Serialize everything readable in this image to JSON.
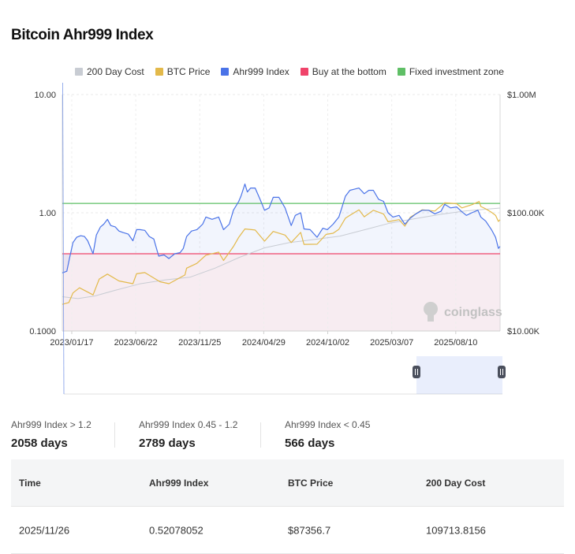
{
  "page_title": "Bitcoin Ahr999 Index",
  "legend": [
    {
      "label": "200 Day Cost",
      "color": "#c8ccd3"
    },
    {
      "label": "BTC Price",
      "color": "#e3b94a"
    },
    {
      "label": "Ahr999 Index",
      "color": "#4a73e8"
    },
    {
      "label": "Buy at the bottom",
      "color": "#f0436a"
    },
    {
      "label": "Fixed investment zone",
      "color": "#5fbf66"
    }
  ],
  "watermark": "coinglass",
  "chart_data": {
    "type": "line",
    "x_start": "2022-12-25",
    "x_end": "2025-11-26",
    "x_tick_labels": [
      "2023/01/17",
      "2023/06/22",
      "2023/11/25",
      "2024/04/29",
      "2024/10/02",
      "2025/03/07",
      "2025/08/10"
    ],
    "x_tick_dates": [
      "2023-01-17",
      "2023-06-22",
      "2023-11-25",
      "2024-04-29",
      "2024-10-02",
      "2025-03-07",
      "2025-08-10"
    ],
    "y_left": {
      "scale": "log",
      "ylim": [
        0.1,
        10
      ],
      "tick_labels": [
        "10.00",
        "1.00",
        "0.1000"
      ],
      "tick_values": [
        10,
        1,
        0.1
      ]
    },
    "y_right": {
      "scale": "log",
      "ylim": [
        10000,
        1000000
      ],
      "tick_labels": [
        "$1.00M",
        "$100.00K",
        "$10.00K"
      ],
      "tick_values": [
        1000000,
        100000,
        10000
      ]
    },
    "thresholds": [
      {
        "name": "Fixed investment zone",
        "value": 1.2,
        "color": "#5fbf66"
      },
      {
        "name": "Buy at the bottom",
        "value": 0.45,
        "color": "#f0436a"
      }
    ],
    "grid": true,
    "legend_position": "top",
    "series": [
      {
        "name": "Ahr999 Index",
        "axis": "left",
        "color": "#4a73e8",
        "points": [
          [
            "2022-12-25",
            0.31
          ],
          [
            "2023-01-05",
            0.32
          ],
          [
            "2023-01-12",
            0.42
          ],
          [
            "2023-01-20",
            0.56
          ],
          [
            "2023-01-29",
            0.62
          ],
          [
            "2023-02-08",
            0.64
          ],
          [
            "2023-02-17",
            0.63
          ],
          [
            "2023-02-25",
            0.58
          ],
          [
            "2023-03-10",
            0.45
          ],
          [
            "2023-03-18",
            0.65
          ],
          [
            "2023-03-28",
            0.76
          ],
          [
            "2023-04-05",
            0.8
          ],
          [
            "2023-04-14",
            0.88
          ],
          [
            "2023-04-22",
            0.78
          ],
          [
            "2023-05-03",
            0.76
          ],
          [
            "2023-05-12",
            0.7
          ],
          [
            "2023-05-22",
            0.68
          ],
          [
            "2023-06-04",
            0.66
          ],
          [
            "2023-06-15",
            0.58
          ],
          [
            "2023-06-24",
            0.72
          ],
          [
            "2023-07-02",
            0.72
          ],
          [
            "2023-07-14",
            0.71
          ],
          [
            "2023-07-25",
            0.63
          ],
          [
            "2023-08-05",
            0.6
          ],
          [
            "2023-08-17",
            0.43
          ],
          [
            "2023-08-30",
            0.44
          ],
          [
            "2023-09-11",
            0.41
          ],
          [
            "2023-09-25",
            0.45
          ],
          [
            "2023-10-08",
            0.46
          ],
          [
            "2023-10-16",
            0.5
          ],
          [
            "2023-10-24",
            0.63
          ],
          [
            "2023-11-05",
            0.7
          ],
          [
            "2023-11-18",
            0.72
          ],
          [
            "2023-12-02",
            0.8
          ],
          [
            "2023-12-10",
            0.92
          ],
          [
            "2023-12-25",
            0.88
          ],
          [
            "2024-01-10",
            0.92
          ],
          [
            "2024-01-22",
            0.72
          ],
          [
            "2024-02-05",
            0.8
          ],
          [
            "2024-02-15",
            1.05
          ],
          [
            "2024-02-28",
            1.25
          ],
          [
            "2024-03-05",
            1.4
          ],
          [
            "2024-03-14",
            1.75
          ],
          [
            "2024-03-20",
            1.5
          ],
          [
            "2024-03-28",
            1.62
          ],
          [
            "2024-04-08",
            1.62
          ],
          [
            "2024-04-20",
            1.3
          ],
          [
            "2024-05-01",
            1.05
          ],
          [
            "2024-05-12",
            1.1
          ],
          [
            "2024-05-22",
            1.35
          ],
          [
            "2024-06-05",
            1.35
          ],
          [
            "2024-06-20",
            1.1
          ],
          [
            "2024-07-05",
            0.78
          ],
          [
            "2024-07-15",
            0.95
          ],
          [
            "2024-07-28",
            1.0
          ],
          [
            "2024-08-05",
            0.73
          ],
          [
            "2024-08-20",
            0.72
          ],
          [
            "2024-09-06",
            0.62
          ],
          [
            "2024-09-20",
            0.74
          ],
          [
            "2024-10-01",
            0.72
          ],
          [
            "2024-10-15",
            0.8
          ],
          [
            "2024-10-29",
            0.92
          ],
          [
            "2024-11-06",
            1.12
          ],
          [
            "2024-11-14",
            1.38
          ],
          [
            "2024-11-25",
            1.55
          ],
          [
            "2024-12-05",
            1.58
          ],
          [
            "2024-12-17",
            1.62
          ],
          [
            "2024-12-30",
            1.45
          ],
          [
            "2025-01-10",
            1.55
          ],
          [
            "2025-01-21",
            1.55
          ],
          [
            "2025-02-03",
            1.3
          ],
          [
            "2025-02-15",
            1.25
          ],
          [
            "2025-02-26",
            1.0
          ],
          [
            "2025-03-10",
            0.92
          ],
          [
            "2025-03-25",
            0.95
          ],
          [
            "2025-04-08",
            0.8
          ],
          [
            "2025-04-21",
            0.9
          ],
          [
            "2025-05-05",
            0.98
          ],
          [
            "2025-05-20",
            1.05
          ],
          [
            "2025-06-05",
            1.05
          ],
          [
            "2025-06-20",
            0.98
          ],
          [
            "2025-07-05",
            1.03
          ],
          [
            "2025-07-14",
            1.18
          ],
          [
            "2025-07-28",
            1.1
          ],
          [
            "2025-08-12",
            1.12
          ],
          [
            "2025-08-25",
            1.02
          ],
          [
            "2025-09-05",
            0.95
          ],
          [
            "2025-09-18",
            1.0
          ],
          [
            "2025-10-03",
            1.05
          ],
          [
            "2025-10-10",
            0.92
          ],
          [
            "2025-10-22",
            0.85
          ],
          [
            "2025-11-05",
            0.72
          ],
          [
            "2025-11-15",
            0.62
          ],
          [
            "2025-11-22",
            0.5
          ],
          [
            "2025-11-26",
            0.52
          ]
        ]
      },
      {
        "name": "BTC Price",
        "axis": "right",
        "color": "#e3b94a",
        "points": [
          [
            "2022-12-25",
            16800
          ],
          [
            "2023-01-10",
            17400
          ],
          [
            "2023-01-20",
            21000
          ],
          [
            "2023-02-05",
            23200
          ],
          [
            "2023-03-10",
            20200
          ],
          [
            "2023-03-25",
            27500
          ],
          [
            "2023-04-14",
            30300
          ],
          [
            "2023-05-12",
            26500
          ],
          [
            "2023-06-15",
            25100
          ],
          [
            "2023-06-24",
            30500
          ],
          [
            "2023-07-14",
            31200
          ],
          [
            "2023-08-20",
            26100
          ],
          [
            "2023-09-11",
            25100
          ],
          [
            "2023-10-20",
            29800
          ],
          [
            "2023-10-24",
            34000
          ],
          [
            "2023-11-18",
            37300
          ],
          [
            "2023-12-10",
            43800
          ],
          [
            "2024-01-10",
            46500
          ],
          [
            "2024-01-22",
            39500
          ],
          [
            "2024-02-15",
            51800
          ],
          [
            "2024-02-28",
            62000
          ],
          [
            "2024-03-14",
            73000
          ],
          [
            "2024-04-08",
            71500
          ],
          [
            "2024-05-01",
            57500
          ],
          [
            "2024-05-22",
            69500
          ],
          [
            "2024-06-20",
            64800
          ],
          [
            "2024-07-05",
            56000
          ],
          [
            "2024-07-28",
            68200
          ],
          [
            "2024-08-05",
            54000
          ],
          [
            "2024-09-06",
            54200
          ],
          [
            "2024-09-28",
            65700
          ],
          [
            "2024-10-15",
            67100
          ],
          [
            "2024-10-29",
            72400
          ],
          [
            "2024-11-14",
            90000
          ],
          [
            "2024-11-25",
            95000
          ],
          [
            "2024-12-17",
            106000
          ],
          [
            "2024-12-30",
            92500
          ],
          [
            "2025-01-21",
            105000
          ],
          [
            "2025-02-15",
            97500
          ],
          [
            "2025-02-26",
            84000
          ],
          [
            "2025-03-25",
            87500
          ],
          [
            "2025-04-08",
            77000
          ],
          [
            "2025-04-21",
            91500
          ],
          [
            "2025-05-20",
            106000
          ],
          [
            "2025-06-20",
            103500
          ],
          [
            "2025-07-14",
            121500
          ],
          [
            "2025-08-12",
            119500
          ],
          [
            "2025-08-25",
            110000
          ],
          [
            "2025-09-18",
            117000
          ],
          [
            "2025-10-06",
            124500
          ],
          [
            "2025-10-10",
            113000
          ],
          [
            "2025-10-22",
            108000
          ],
          [
            "2025-11-05",
            101000
          ],
          [
            "2025-11-15",
            95000
          ],
          [
            "2025-11-22",
            84500
          ],
          [
            "2025-11-26",
            87356.7
          ]
        ]
      },
      {
        "name": "200 Day Cost",
        "axis": "right",
        "color": "#c8ccd3",
        "points": [
          [
            "2022-12-25",
            19500
          ],
          [
            "2023-02-01",
            18800
          ],
          [
            "2023-03-15",
            19800
          ],
          [
            "2023-05-01",
            22000
          ],
          [
            "2023-07-01",
            25000
          ],
          [
            "2023-09-01",
            27000
          ],
          [
            "2023-11-01",
            28500
          ],
          [
            "2024-01-01",
            34000
          ],
          [
            "2024-03-01",
            42000
          ],
          [
            "2024-05-01",
            50500
          ],
          [
            "2024-07-01",
            56000
          ],
          [
            "2024-09-01",
            59500
          ],
          [
            "2024-11-01",
            63500
          ],
          [
            "2025-01-01",
            72000
          ],
          [
            "2025-03-01",
            81500
          ],
          [
            "2025-05-01",
            89000
          ],
          [
            "2025-07-01",
            96500
          ],
          [
            "2025-09-01",
            103500
          ],
          [
            "2025-11-26",
            109713.8156
          ]
        ]
      }
    ]
  },
  "stats": [
    {
      "label": "Ahr999 Index > 1.2",
      "value": "2058 days"
    },
    {
      "label": "Ahr999 Index 0.45 - 1.2",
      "value": "2789 days"
    },
    {
      "label": "Ahr999 Index < 0.45",
      "value": "566 days"
    }
  ],
  "table": {
    "headers": [
      "Time",
      "Ahr999 Index",
      "BTC Price",
      "200 Day Cost"
    ],
    "rows": [
      [
        "2025/11/26",
        "0.52078052",
        "$87356.7",
        "109713.8156"
      ]
    ]
  }
}
